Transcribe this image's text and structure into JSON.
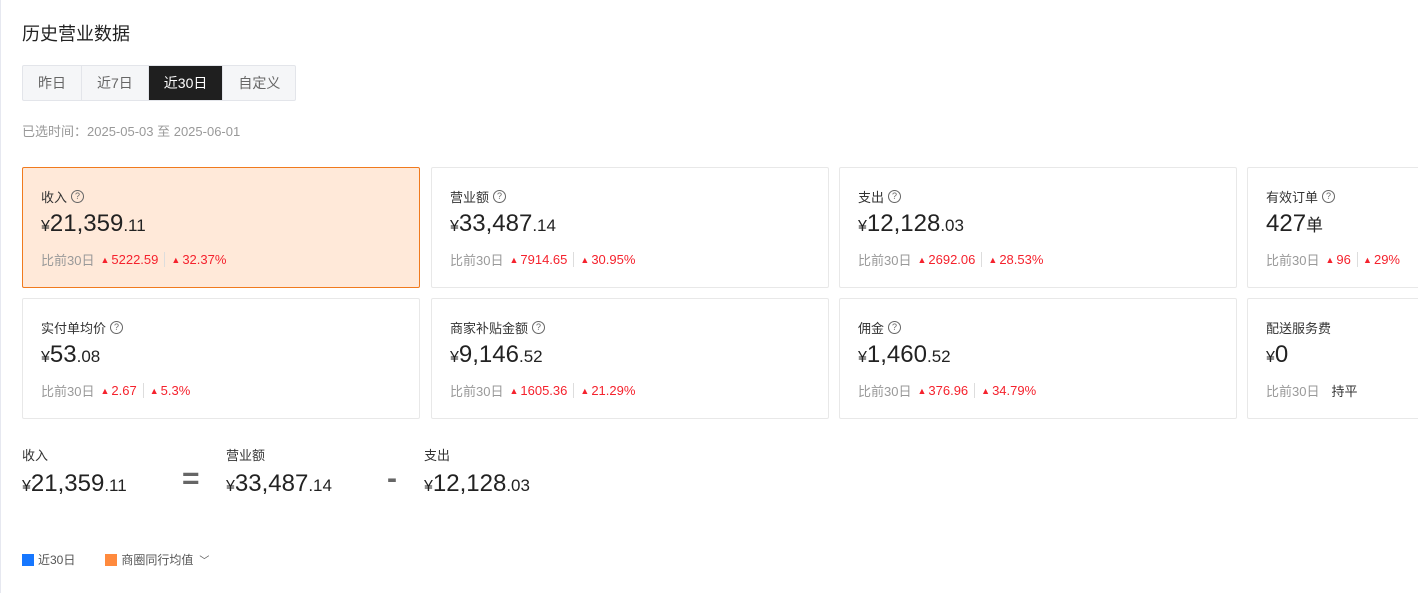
{
  "title": "历史营业数据",
  "tabs": [
    {
      "label": "昨日"
    },
    {
      "label": "近7日"
    },
    {
      "label": "近30日",
      "active": true
    },
    {
      "label": "自定义"
    }
  ],
  "range": "已选时间：2025-05-03 至 2025-06-01",
  "compare_label": "比前30日",
  "cards": [
    {
      "label": "收入",
      "cur": "¥",
      "int": "21,359",
      "dec": ".11",
      "d1": "5222.59",
      "d2": "32.37%",
      "selected": true
    },
    {
      "label": "营业额",
      "cur": "¥",
      "int": "33,487",
      "dec": ".14",
      "d1": "7914.65",
      "d2": "30.95%"
    },
    {
      "label": "支出",
      "cur": "¥",
      "int": "12,128",
      "dec": ".03",
      "d1": "2692.06",
      "d2": "28.53%"
    },
    {
      "label": "有效订单",
      "cur": "",
      "int": "427",
      "dec": "单",
      "d1": "96",
      "d2": "29%"
    },
    {
      "label": "实付单均价",
      "cur": "¥",
      "int": "53",
      "dec": ".08",
      "d1": "2.67",
      "d2": "5.3%"
    },
    {
      "label": "商家补贴金额",
      "cur": "¥",
      "int": "9,146",
      "dec": ".52",
      "d1": "1605.36",
      "d2": "21.29%"
    },
    {
      "label": "佣金",
      "cur": "¥",
      "int": "1,460",
      "dec": ".52",
      "d1": "376.96",
      "d2": "34.79%"
    },
    {
      "label": "配送服务费",
      "cur": "¥",
      "int": "0",
      "dec": "",
      "flat": "持平",
      "no_help": true
    }
  ],
  "equation": {
    "a": {
      "label": "收入",
      "cur": "¥",
      "int": "21,359",
      "dec": ".11"
    },
    "eq": "=",
    "b": {
      "label": "营业额",
      "cur": "¥",
      "int": "33,487",
      "dec": ".14"
    },
    "minus": "-",
    "c": {
      "label": "支出",
      "cur": "¥",
      "int": "12,128",
      "dec": ".03"
    }
  },
  "legend": [
    {
      "label": "近30日",
      "color": "#1677ff"
    },
    {
      "label": "商圈同行均值",
      "color": "#ff8a3d",
      "dropdown": true
    }
  ],
  "colors": {
    "accent": "#f07a1e",
    "up": "#f5222d"
  }
}
